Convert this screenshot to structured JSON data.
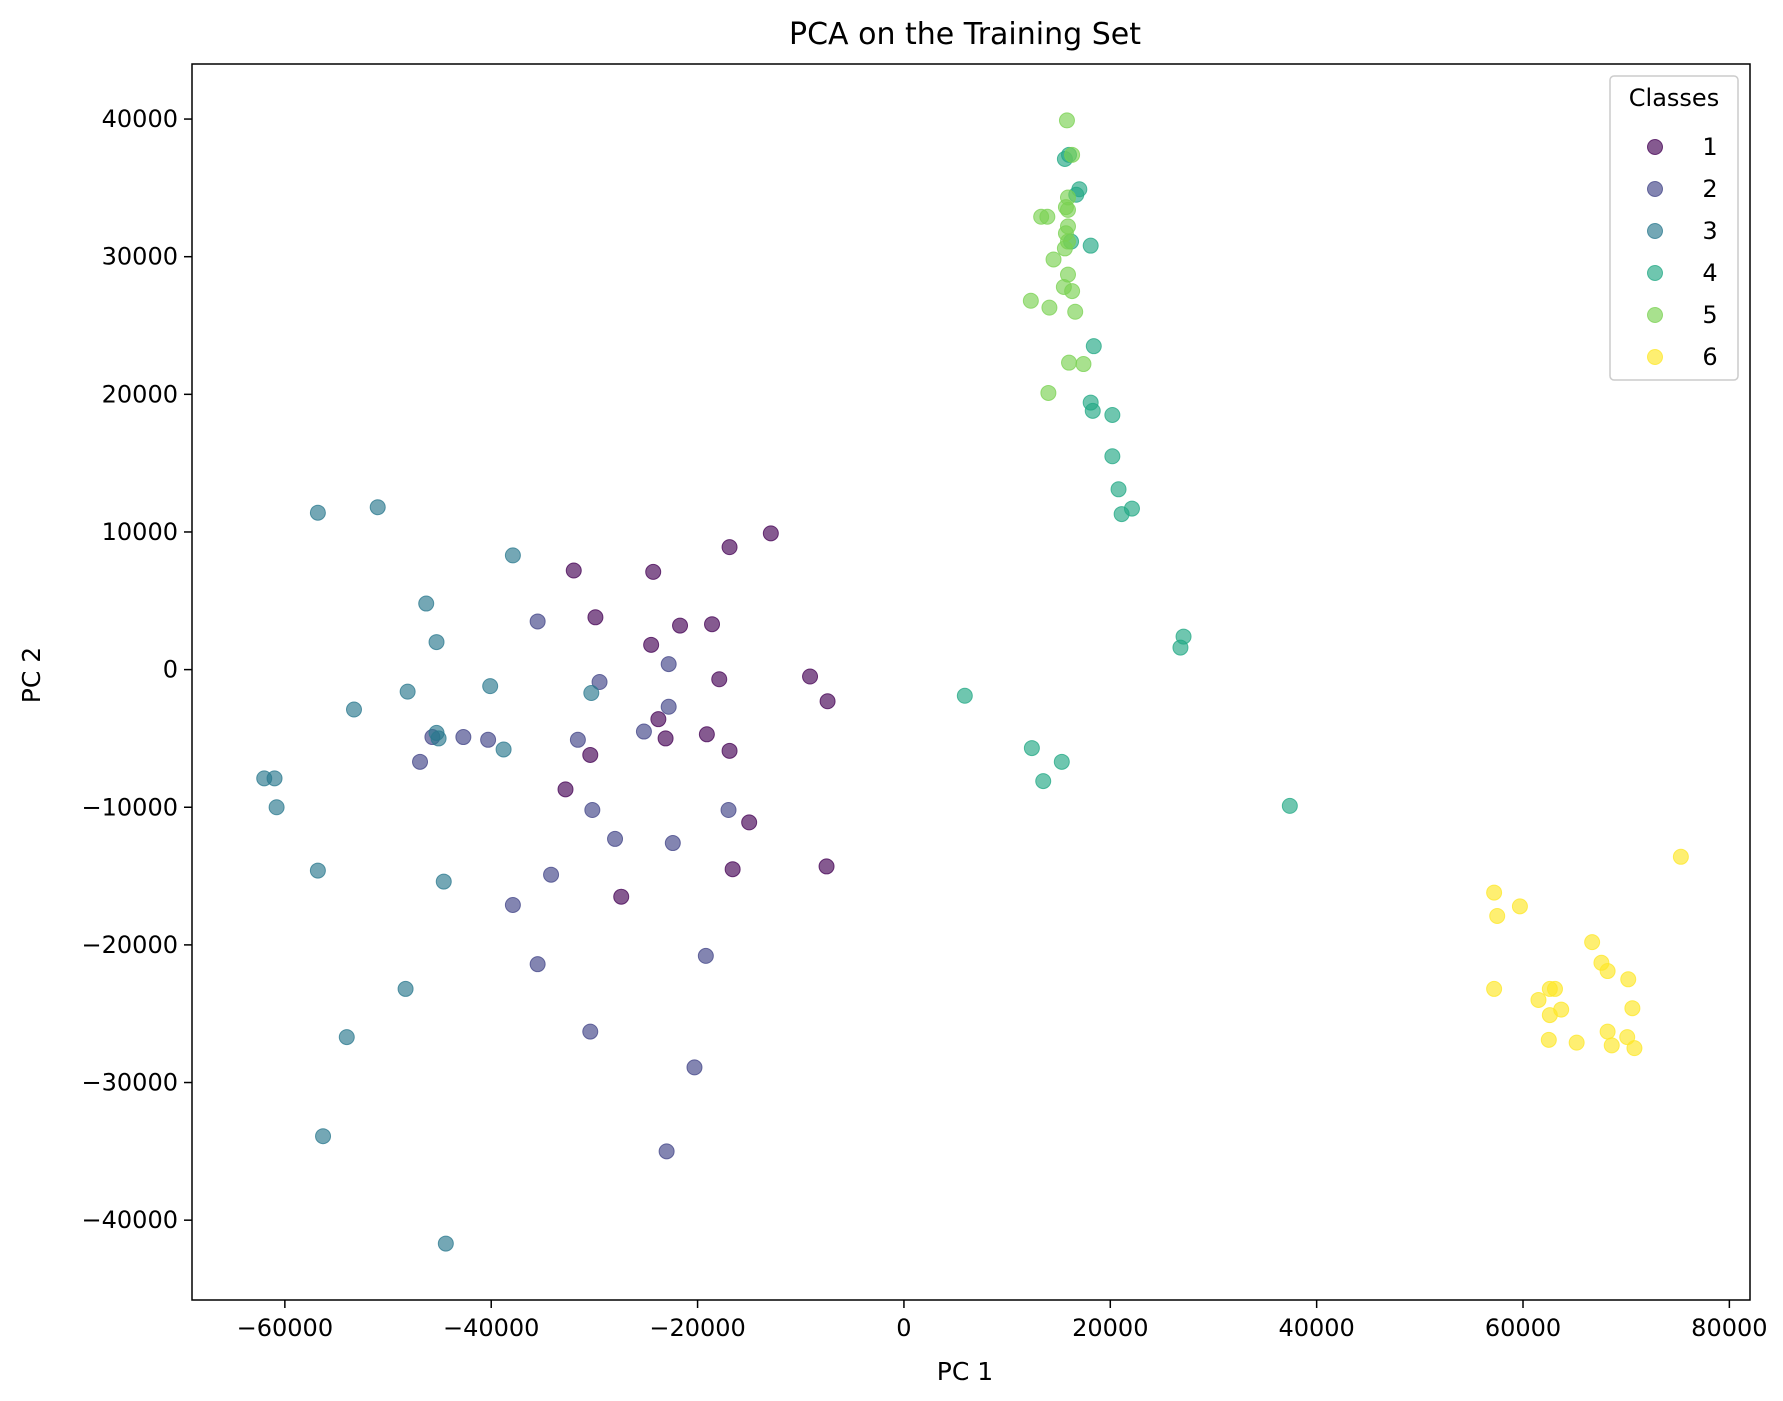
{
  "chart_data": {
    "type": "scatter",
    "title": "PCA on the Training Set",
    "xlabel": "PC 1",
    "ylabel": "PC 2",
    "xlim": [
      -69000,
      82000
    ],
    "ylim": [
      -45800,
      44000
    ],
    "xticks": [
      -60000,
      -40000,
      -20000,
      0,
      20000,
      40000,
      60000,
      80000
    ],
    "xtick_labels": [
      "−60000",
      "−40000",
      "−20000",
      "0",
      "20000",
      "40000",
      "60000",
      "80000"
    ],
    "yticks": [
      -40000,
      -30000,
      -20000,
      -10000,
      0,
      10000,
      20000,
      30000,
      40000
    ],
    "ytick_labels": [
      "−40000",
      "−30000",
      "−20000",
      "−10000",
      "0",
      "10000",
      "20000",
      "30000",
      "40000"
    ],
    "grid": false,
    "legend": {
      "title": "Classes",
      "position": "top-right"
    },
    "series": [
      {
        "name": "1",
        "color": "#440154",
        "points": [
          [
            -32000,
            7200
          ],
          [
            -24300,
            7100
          ],
          [
            -16900,
            8900
          ],
          [
            -12900,
            9900
          ],
          [
            -29900,
            3800
          ],
          [
            -21700,
            3200
          ],
          [
            -18600,
            3300
          ],
          [
            -24500,
            1800
          ],
          [
            -17900,
            -700
          ],
          [
            -9100,
            -500
          ],
          [
            -7400,
            -2300
          ],
          [
            -23800,
            -3600
          ],
          [
            -23100,
            -5000
          ],
          [
            -19100,
            -4700
          ],
          [
            -16900,
            -5900
          ],
          [
            -30400,
            -6200
          ],
          [
            -32800,
            -8700
          ],
          [
            -15000,
            -11100
          ],
          [
            -16600,
            -14500
          ],
          [
            -7500,
            -14300
          ],
          [
            -27400,
            -16500
          ]
        ]
      },
      {
        "name": "2",
        "color": "#414487",
        "points": [
          [
            -35500,
            3500
          ],
          [
            -22800,
            400
          ],
          [
            -29500,
            -900
          ],
          [
            -22800,
            -2700
          ],
          [
            -25200,
            -4500
          ],
          [
            -31600,
            -5100
          ],
          [
            -42700,
            -4900
          ],
          [
            -40300,
            -5100
          ],
          [
            -46900,
            -6700
          ],
          [
            -45700,
            -4900
          ],
          [
            -30200,
            -10200
          ],
          [
            -17000,
            -10200
          ],
          [
            -28000,
            -12300
          ],
          [
            -22400,
            -12600
          ],
          [
            -34200,
            -14900
          ],
          [
            -37900,
            -17100
          ],
          [
            -35500,
            -21400
          ],
          [
            -19200,
            -20800
          ],
          [
            -30400,
            -26300
          ],
          [
            -20300,
            -28900
          ],
          [
            -23000,
            -35000
          ]
        ]
      },
      {
        "name": "3",
        "color": "#2a788e",
        "points": [
          [
            -56800,
            11400
          ],
          [
            -51000,
            11800
          ],
          [
            -37900,
            8300
          ],
          [
            -46300,
            4800
          ],
          [
            -45300,
            2000
          ],
          [
            -48100,
            -1600
          ],
          [
            -40100,
            -1200
          ],
          [
            -53300,
            -2900
          ],
          [
            -45300,
            -4600
          ],
          [
            -45100,
            -5000
          ],
          [
            -38800,
            -5800
          ],
          [
            -30300,
            -1700
          ],
          [
            -62000,
            -7900
          ],
          [
            -61000,
            -7900
          ],
          [
            -60800,
            -10000
          ],
          [
            -56800,
            -14600
          ],
          [
            -44600,
            -15400
          ],
          [
            -48300,
            -23200
          ],
          [
            -54000,
            -26700
          ],
          [
            -56300,
            -33900
          ],
          [
            -44400,
            -41700
          ]
        ]
      },
      {
        "name": "4",
        "color": "#22a884",
        "points": [
          [
            16000,
            37400
          ],
          [
            15600,
            37100
          ],
          [
            17000,
            34900
          ],
          [
            16700,
            34500
          ],
          [
            16200,
            31100
          ],
          [
            18100,
            30800
          ],
          [
            18400,
            23500
          ],
          [
            18100,
            19400
          ],
          [
            18300,
            18800
          ],
          [
            20200,
            18500
          ],
          [
            20200,
            15500
          ],
          [
            20800,
            13100
          ],
          [
            22100,
            11700
          ],
          [
            21100,
            11300
          ],
          [
            27100,
            2400
          ],
          [
            26800,
            1600
          ],
          [
            5900,
            -1900
          ],
          [
            12400,
            -5700
          ],
          [
            15300,
            -6700
          ],
          [
            13500,
            -8100
          ],
          [
            37400,
            -9900
          ]
        ]
      },
      {
        "name": "5",
        "color": "#7ad151",
        "points": [
          [
            15800,
            39900
          ],
          [
            16300,
            37400
          ],
          [
            15900,
            34300
          ],
          [
            15700,
            33600
          ],
          [
            15900,
            33400
          ],
          [
            13300,
            32900
          ],
          [
            13900,
            32900
          ],
          [
            15900,
            32200
          ],
          [
            15700,
            31700
          ],
          [
            15900,
            31100
          ],
          [
            15600,
            30600
          ],
          [
            14500,
            29800
          ],
          [
            15900,
            28700
          ],
          [
            15500,
            27800
          ],
          [
            16300,
            27500
          ],
          [
            12300,
            26800
          ],
          [
            14100,
            26300
          ],
          [
            16600,
            26000
          ],
          [
            16000,
            22300
          ],
          [
            17400,
            22200
          ],
          [
            14000,
            20100
          ]
        ]
      },
      {
        "name": "6",
        "color": "#fde725",
        "points": [
          [
            75300,
            -13600
          ],
          [
            57200,
            -16200
          ],
          [
            59700,
            -17200
          ],
          [
            57500,
            -17900
          ],
          [
            66700,
            -19800
          ],
          [
            67600,
            -21300
          ],
          [
            68200,
            -21900
          ],
          [
            70200,
            -22500
          ],
          [
            62600,
            -23200
          ],
          [
            63100,
            -23200
          ],
          [
            57200,
            -23200
          ],
          [
            61500,
            -24000
          ],
          [
            63700,
            -24700
          ],
          [
            62600,
            -25100
          ],
          [
            70600,
            -24600
          ],
          [
            68200,
            -26300
          ],
          [
            70100,
            -26700
          ],
          [
            62500,
            -26900
          ],
          [
            65200,
            -27100
          ],
          [
            68600,
            -27300
          ],
          [
            70800,
            -27500
          ]
        ]
      }
    ]
  }
}
